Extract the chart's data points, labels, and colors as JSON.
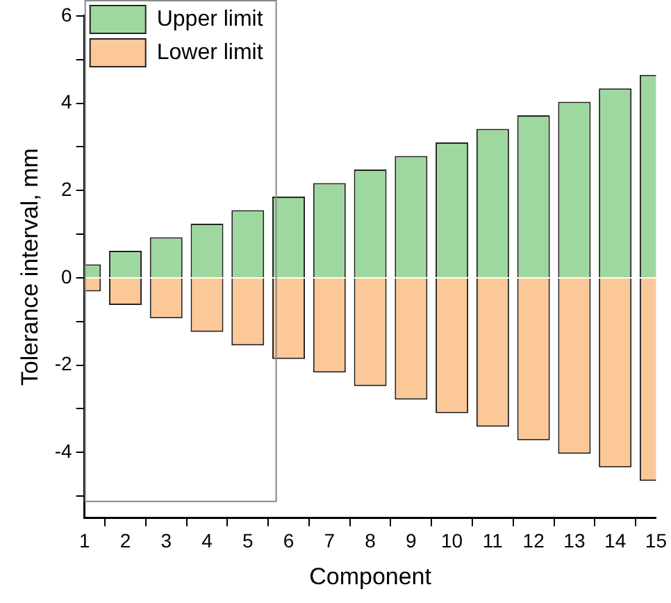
{
  "chart_data": {
    "type": "bar",
    "xlabel": "Component",
    "ylabel": "Tolerance interval, mm",
    "x": [
      1,
      2,
      3,
      4,
      5,
      6,
      7,
      8,
      9,
      10,
      11,
      12,
      13,
      14,
      15
    ],
    "series": [
      {
        "name": "Upper limit",
        "color": "#9fd89f",
        "values": [
          0.31,
          0.62,
          0.93,
          1.24,
          1.55,
          1.86,
          2.17,
          2.48,
          2.79,
          3.1,
          3.41,
          3.72,
          4.03,
          4.34,
          4.65
        ]
      },
      {
        "name": "Lower limit",
        "color": "#fdc898",
        "values": [
          -0.31,
          -0.62,
          -0.93,
          -1.24,
          -1.55,
          -1.86,
          -2.17,
          -2.48,
          -2.79,
          -3.1,
          -3.41,
          -3.72,
          -4.03,
          -4.34,
          -4.65
        ]
      }
    ],
    "stacked": true,
    "xlim": [
      1,
      15
    ],
    "xticks": [
      1,
      2,
      3,
      4,
      5,
      6,
      7,
      8,
      9,
      10,
      11,
      12,
      13,
      14,
      15
    ],
    "ylim": [
      -5.5,
      6
    ],
    "yticks": [
      {
        "value": -5,
        "label": null
      },
      -4,
      {
        "value": -3,
        "label": null
      },
      -2,
      {
        "value": -1,
        "label": null
      },
      0,
      {
        "value": 1,
        "label": null
      },
      2,
      {
        "value": 3,
        "label": null
      },
      4,
      {
        "value": 5,
        "label": null
      },
      6
    ],
    "grid": false,
    "legend": "top left"
  }
}
